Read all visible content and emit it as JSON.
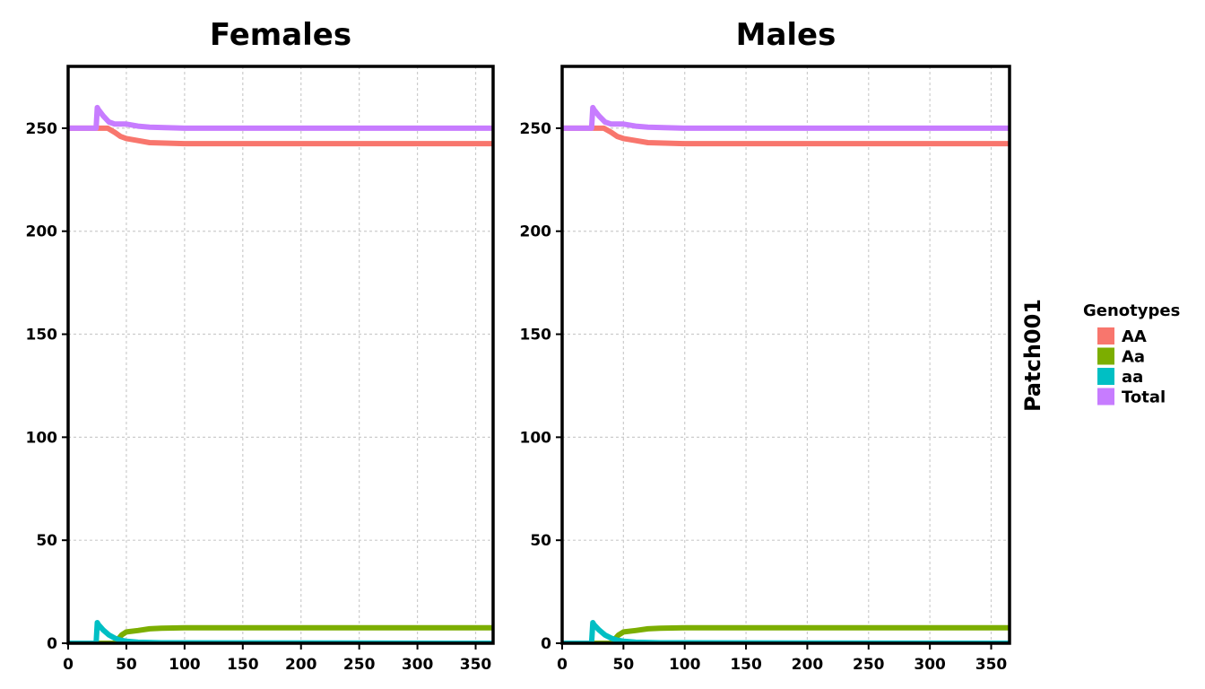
{
  "chart_data": [
    {
      "type": "line",
      "title": "Females",
      "xlabel": "",
      "ylabel": "",
      "xlim": [
        0,
        365
      ],
      "ylim": [
        0,
        280
      ],
      "x_ticks": [
        0,
        50,
        100,
        150,
        200,
        250,
        300,
        350
      ],
      "y_ticks": [
        0,
        50,
        100,
        150,
        200,
        250
      ],
      "grid": true,
      "series": [
        {
          "name": "AA",
          "x": [
            0,
            24,
            30,
            34,
            40,
            45,
            50,
            60,
            70,
            80,
            100,
            150,
            200,
            300,
            365
          ],
          "y": [
            250,
            250,
            250,
            250,
            248,
            246,
            245,
            244,
            243,
            242.8,
            242.5,
            242.5,
            242.5,
            242.5,
            242.5
          ]
        },
        {
          "name": "Aa",
          "x": [
            0,
            40,
            43,
            46,
            50,
            60,
            70,
            80,
            100,
            150,
            200,
            300,
            365
          ],
          "y": [
            0,
            0,
            2,
            4,
            5.5,
            6.2,
            7,
            7.3,
            7.5,
            7.5,
            7.5,
            7.5,
            7.5
          ]
        },
        {
          "name": "aa",
          "x": [
            0,
            24,
            25,
            26,
            30,
            35,
            40,
            45,
            50,
            60,
            80,
            365
          ],
          "y": [
            0,
            0,
            10,
            9,
            6.5,
            4,
            2.5,
            1.5,
            1,
            0.5,
            0.2,
            0
          ]
        },
        {
          "name": "Total",
          "x": [
            0,
            24,
            25,
            26,
            30,
            35,
            40,
            45,
            50,
            60,
            70,
            100,
            150,
            200,
            300,
            365
          ],
          "y": [
            250,
            250,
            260,
            259,
            256,
            253,
            252,
            252,
            252,
            251,
            250.5,
            250,
            250,
            250,
            250,
            250
          ]
        }
      ]
    },
    {
      "type": "line",
      "title": "Males",
      "xlabel": "",
      "ylabel": "",
      "xlim": [
        0,
        365
      ],
      "ylim": [
        0,
        280
      ],
      "x_ticks": [
        0,
        50,
        100,
        150,
        200,
        250,
        300,
        350
      ],
      "y_ticks": [
        0,
        50,
        100,
        150,
        200,
        250
      ],
      "grid": true,
      "series": [
        {
          "name": "AA",
          "x": [
            0,
            24,
            30,
            34,
            40,
            45,
            50,
            60,
            70,
            80,
            100,
            150,
            200,
            300,
            365
          ],
          "y": [
            250,
            250,
            250,
            250,
            248,
            246,
            245,
            244,
            243,
            242.8,
            242.5,
            242.5,
            242.5,
            242.5,
            242.5
          ]
        },
        {
          "name": "Aa",
          "x": [
            0,
            40,
            43,
            46,
            50,
            60,
            70,
            80,
            100,
            150,
            200,
            300,
            365
          ],
          "y": [
            0,
            0,
            2,
            4,
            5.5,
            6.2,
            7,
            7.3,
            7.5,
            7.5,
            7.5,
            7.5,
            7.5
          ]
        },
        {
          "name": "aa",
          "x": [
            0,
            24,
            25,
            26,
            30,
            35,
            40,
            45,
            50,
            60,
            80,
            365
          ],
          "y": [
            0,
            0,
            10,
            9,
            6.5,
            4,
            2.5,
            1.5,
            1,
            0.5,
            0.2,
            0
          ]
        },
        {
          "name": "Total",
          "x": [
            0,
            24,
            25,
            26,
            30,
            35,
            40,
            45,
            50,
            60,
            70,
            100,
            150,
            200,
            300,
            365
          ],
          "y": [
            250,
            250,
            260,
            259,
            256,
            253,
            252,
            252,
            252,
            251,
            250.5,
            250,
            250,
            250,
            250,
            250
          ]
        }
      ]
    }
  ],
  "strip_label": "Patch001",
  "legend": {
    "title": "Genotypes",
    "placement": "right",
    "items": [
      {
        "label": "AA",
        "color": "#F8766D"
      },
      {
        "label": "Aa",
        "color": "#7CAE00"
      },
      {
        "label": "aa",
        "color": "#00BFC4"
      },
      {
        "label": "Total",
        "color": "#C77CFF"
      }
    ]
  }
}
